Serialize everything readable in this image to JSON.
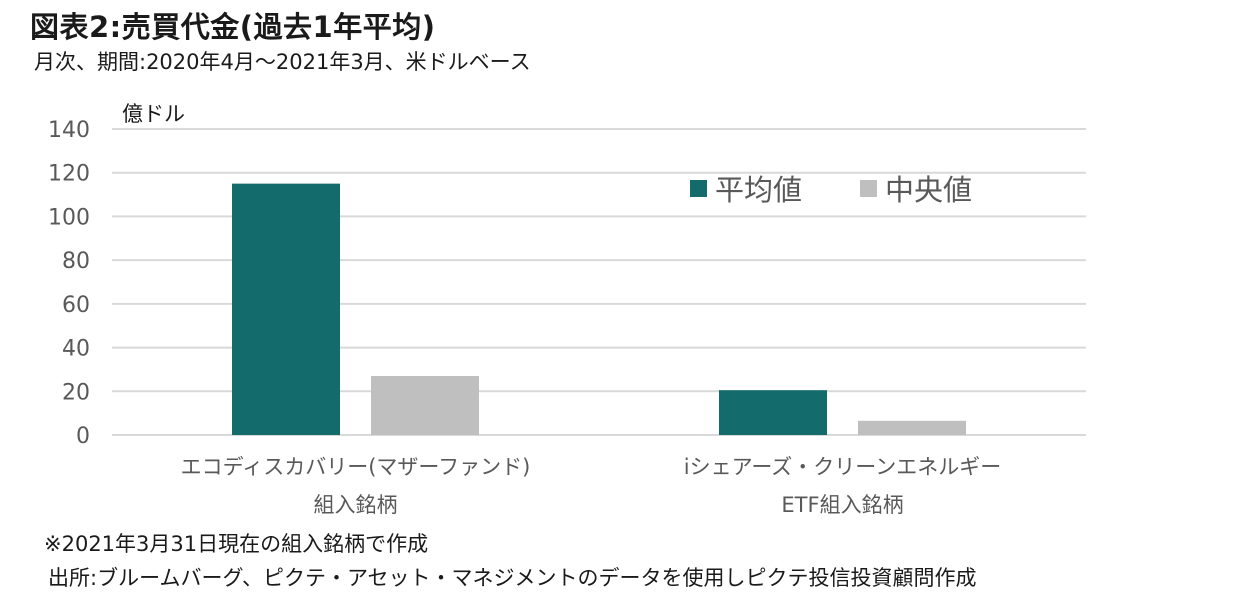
{
  "header": {
    "title": "図表2:売買代金(過去1年平均)",
    "subtitle": "月次、期間:2020年4月～2021年3月、米ドルベース"
  },
  "footer": {
    "note": "※2021年3月31日現在の組入銘柄で作成",
    "source": "出所:ブルームバーグ、ピクテ・アセット・マネジメントのデータを使用しピクテ投信投資顧問作成"
  },
  "chart_data": {
    "type": "bar",
    "unit_label": "億ドル",
    "categories": [
      [
        "エコディスカバリー(マザーファンド)",
        "組入銘柄"
      ],
      [
        "iシェアーズ・クリーンエネルギー",
        "ETF組入銘柄"
      ]
    ],
    "series": [
      {
        "name": "平均値",
        "values": [
          115,
          20.5
        ],
        "color": "#136b6b"
      },
      {
        "name": "中央値",
        "values": [
          27,
          6.5
        ],
        "color": "#bfbfbf"
      }
    ],
    "ylim": [
      0,
      140
    ],
    "yticks": [
      0,
      20,
      40,
      60,
      80,
      100,
      120,
      140
    ],
    "grid": true,
    "legend_position": "top-right"
  }
}
